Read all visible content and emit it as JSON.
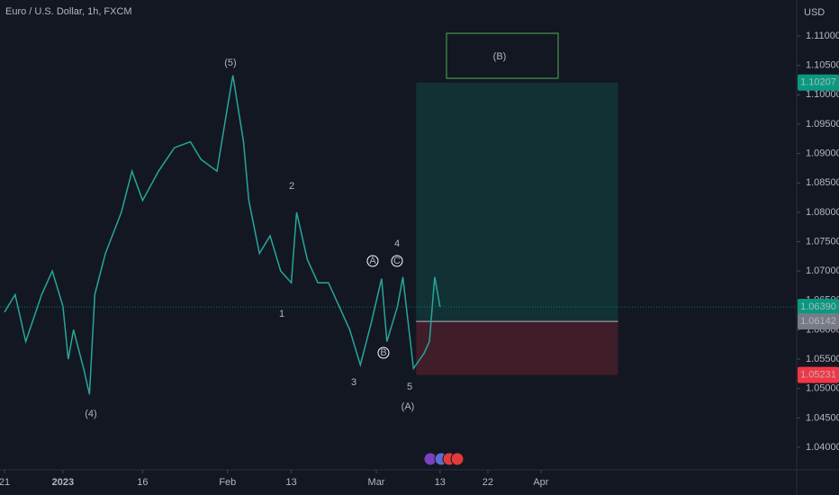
{
  "chart_data": {
    "type": "line",
    "title": "Euro / U.S. Dollar, 1h, FXCM",
    "y_axis_label": "USD",
    "color": "#26a69a",
    "x": [
      0,
      2,
      4,
      7,
      9,
      11,
      12,
      13,
      15,
      16,
      17,
      19,
      22,
      24,
      26,
      29,
      32,
      35,
      37,
      40,
      42,
      43,
      45,
      46,
      48,
      50,
      52,
      54,
      55,
      57,
      59,
      61,
      63,
      65,
      67,
      69,
      71,
      72,
      74,
      75,
      77,
      79,
      80,
      81,
      82
    ],
    "values": [
      1.063,
      1.066,
      1.058,
      1.066,
      1.07,
      1.064,
      1.055,
      1.06,
      1.053,
      1.049,
      1.066,
      1.073,
      1.08,
      1.087,
      1.082,
      1.087,
      1.091,
      1.092,
      1.089,
      1.087,
      1.098,
      1.1033,
      1.092,
      1.082,
      1.073,
      1.076,
      1.07,
      1.068,
      1.08,
      1.072,
      1.068,
      1.068,
      1.064,
      1.06,
      1.054,
      1.061,
      1.0687,
      1.058,
      1.064,
      1.069,
      1.0534,
      1.056,
      1.058,
      1.069,
      1.0639
    ],
    "xlim": [
      -0.85,
      149.15
    ],
    "xticks": [
      {
        "value": 0,
        "label": "21"
      },
      {
        "value": 11,
        "label": "2023"
      },
      {
        "value": 26,
        "label": "16"
      },
      {
        "value": 42,
        "label": "Feb"
      },
      {
        "value": 54,
        "label": "13"
      },
      {
        "value": 70,
        "label": "Mar"
      },
      {
        "value": 82,
        "label": "13"
      },
      {
        "value": 91,
        "label": "22"
      },
      {
        "value": 101,
        "label": "Apr"
      }
    ],
    "ylim": [
      1.03617,
      1.11613
    ],
    "yticks": [
      {
        "value": 1.04,
        "label": "1.04000"
      },
      {
        "value": 1.045,
        "label": "1.04500"
      },
      {
        "value": 1.05,
        "label": "1.05000"
      },
      {
        "value": 1.055,
        "label": "1.05500"
      },
      {
        "value": 1.06,
        "label": "1.06000"
      },
      {
        "value": 1.065,
        "label": "1.06500"
      },
      {
        "value": 1.07,
        "label": "1.07000"
      },
      {
        "value": 1.075,
        "label": "1.07500"
      },
      {
        "value": 1.08,
        "label": "1.08000"
      },
      {
        "value": 1.085,
        "label": "1.08500"
      },
      {
        "value": 1.09,
        "label": "1.09000"
      },
      {
        "value": 1.095,
        "label": "1.09500"
      },
      {
        "value": 1.1,
        "label": "1.10000"
      },
      {
        "value": 1.105,
        "label": "1.10500"
      },
      {
        "value": 1.11,
        "label": "1.11000"
      }
    ],
    "position": {
      "x": [
        77.5,
        115.5
      ],
      "target": 1.10207,
      "entry": 1.06142,
      "stop": 1.05231
    },
    "price_labels": [
      {
        "value": 1.10207,
        "label": "1.10207",
        "color": "#089981"
      },
      {
        "value": 1.0639,
        "label": "1.06390",
        "color": "#089981"
      },
      {
        "value": 1.06142,
        "label": "1.06142",
        "color": "#787b86"
      },
      {
        "value": 1.05231,
        "label": "1.05231",
        "color": "#f23645"
      }
    ],
    "annotations": [
      "(5)",
      "(4)",
      "2",
      "1",
      "3",
      "A",
      "B",
      "C",
      "4",
      "5",
      "(A)",
      "(B)"
    ]
  }
}
